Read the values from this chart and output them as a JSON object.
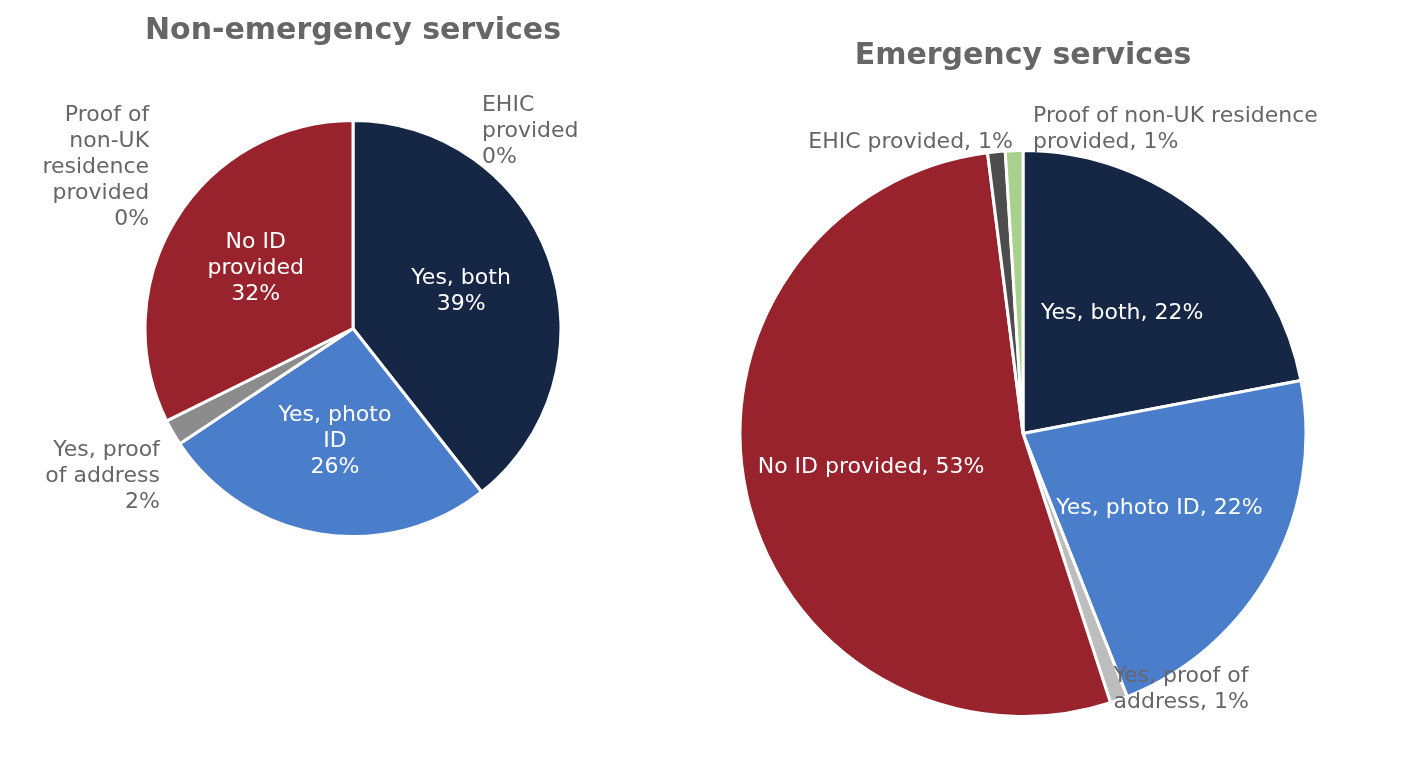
{
  "chart_data": [
    {
      "type": "pie",
      "title": "Non-emergency services",
      "categories": [
        "Yes, both",
        "Yes, photo ID",
        "Yes, proof of address",
        "No ID provided",
        "Proof of non-UK residence provided",
        "EHIC provided"
      ],
      "values": [
        39,
        26,
        2,
        32,
        0,
        0
      ],
      "colors": [
        "#162745",
        "#4a7ecb",
        "#8c8c8c",
        "#98232d",
        "#c5dba5",
        "#4d4d4d"
      ],
      "value_labels": [
        "39%",
        "26%",
        "2%",
        "32%",
        "0%",
        "0%"
      ]
    },
    {
      "type": "pie",
      "title": "Emergency services",
      "categories": [
        "Yes, both",
        "Yes, photo ID",
        "Yes, proof of address",
        "No ID provided",
        "EHIC provided",
        "Proof of non-UK residence provided"
      ],
      "values": [
        22,
        22,
        1,
        53,
        1,
        1
      ],
      "colors": [
        "#162745",
        "#4a7ecb",
        "#bdbdbd",
        "#98232d",
        "#4d4d4d",
        "#a9d18e"
      ],
      "value_labels": [
        "22%",
        "22%",
        "1%",
        "53%",
        "1%",
        "1%"
      ]
    }
  ]
}
